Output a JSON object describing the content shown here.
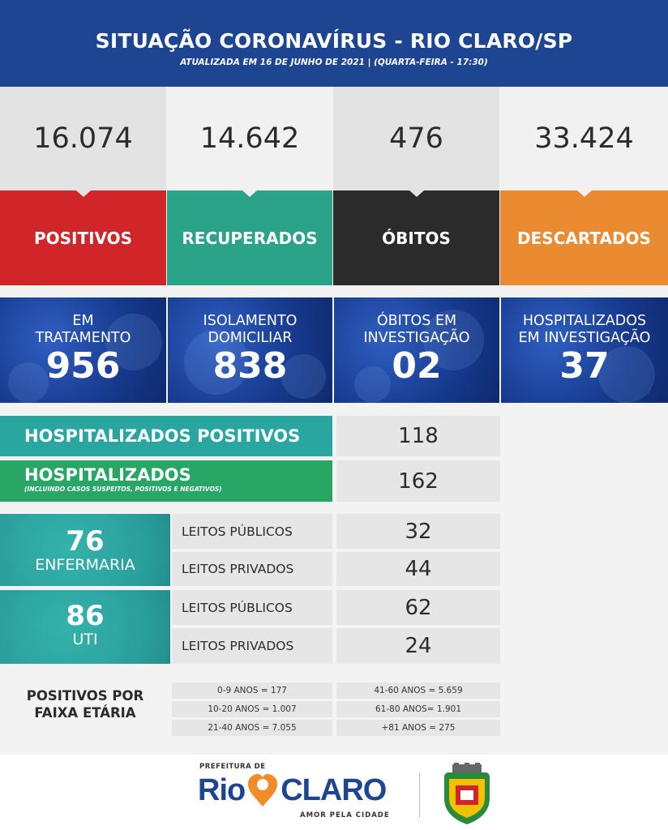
{
  "header": {
    "title": "SITUAÇÃO CORONAVÍRUS - RIO CLARO/SP",
    "subtitle": "ATUALIZADA EM 16 DE JUNHO DE 2021 | (QUARTA-FEIRA - 17:30)"
  },
  "stats": [
    {
      "value": "16.074",
      "label": "POSITIVOS",
      "color": "#d0262a"
    },
    {
      "value": "14.642",
      "label": "RECUPERADOS",
      "color": "#2ba388"
    },
    {
      "value": "476",
      "label": "ÓBITOS",
      "color": "#2b2b2b"
    },
    {
      "value": "33.424",
      "label": "DESCARTADOS",
      "color": "#ea8a31"
    }
  ],
  "blue_stats": [
    {
      "label_1": "EM",
      "label_2": "TRATAMENTO",
      "value": "956"
    },
    {
      "label_1": "ISOLAMENTO",
      "label_2": "DOMICILIAR",
      "value": "838"
    },
    {
      "label_1": "ÓBITOS EM",
      "label_2": "INVESTIGAÇÃO",
      "value": "02"
    },
    {
      "label_1": "HOSPITALIZADOS",
      "label_2": "EM INVESTIGAÇÃO",
      "value": "37"
    }
  ],
  "hospitalized_positive": {
    "label": "HOSPITALIZADOS POSITIVOS",
    "value": "118"
  },
  "hospitalized": {
    "label": "HOSPITALIZADOS",
    "note": "(INCLUINDO CASOS SUSPEITOS, POSITIVOS E NEGATIVOS)",
    "value": "162"
  },
  "enfermaria": {
    "total": "76",
    "label": "ENFERMARIA",
    "public_label": "LEITOS PÚBLICOS",
    "public_value": "32",
    "private_label": "LEITOS PRIVADOS",
    "private_value": "44"
  },
  "uti": {
    "total": "86",
    "label": "UTI",
    "public_label": "LEITOS PÚBLICOS",
    "public_value": "62",
    "private_label": "LEITOS PRIVADOS",
    "private_value": "24"
  },
  "age": {
    "title_1": "POSITIVOS POR",
    "title_2": "FAIXA ETÁRIA",
    "left": [
      "0-9 ANOS = 177",
      "10-20 ANOS = 1.007",
      "21-40 ANOS = 7.055"
    ],
    "right": [
      "41-60 ANOS = 5.659",
      "61-80 ANOS= 1.901",
      "+81 ANOS = 275"
    ]
  },
  "footer": {
    "prefeitura": "PREFEITURA DE",
    "rio": "Rio",
    "claro": "CLARO",
    "slogan": "AMOR PELA CIDADE",
    "brand_blue": "#1d4592",
    "brand_orange": "#f28c28"
  }
}
